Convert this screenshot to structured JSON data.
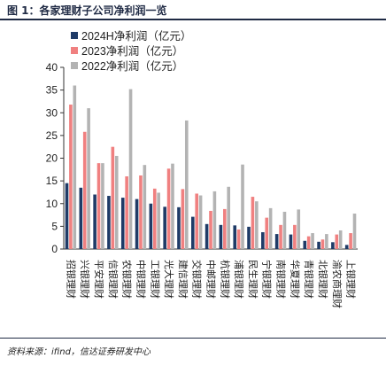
{
  "figure": {
    "title": "图 1：各家理财子公司净利润一览",
    "source": "资料来源：ifind，信达证券研发中心"
  },
  "chart_data": {
    "type": "bar",
    "categories": [
      "招银理财",
      "兴银理财",
      "平安理财",
      "信银理财",
      "农银理财",
      "中银理财",
      "工银理财",
      "光大理财",
      "建信理财",
      "交银理财",
      "中邮理财",
      "杭银理财",
      "浦银理财",
      "民生理财",
      "宁银理财",
      "南银理财",
      "华夏理财",
      "青银理财",
      "北银理财",
      "渝农商理财",
      "上银理财"
    ],
    "series": [
      {
        "name": "2024H净利润（亿元）",
        "color": "#1f3b67",
        "values": [
          14.5,
          13.5,
          12.0,
          11.7,
          11.3,
          11.0,
          10.0,
          9.3,
          9.2,
          7.1,
          5.5,
          5.3,
          5.2,
          4.9,
          3.7,
          3.3,
          3.2,
          1.8,
          1.6,
          1.5,
          0.9
        ]
      },
      {
        "name": "2023净利润（亿元）",
        "color": "#f08080",
        "values": [
          31.8,
          25.8,
          18.9,
          22.5,
          16.0,
          16.2,
          13.3,
          17.7,
          13.2,
          12.2,
          8.4,
          8.8,
          4.3,
          11.5,
          6.9,
          5.3,
          5.3,
          2.8,
          2.1,
          3.2,
          3.5
        ]
      },
      {
        "name": "2022净利润（亿元）",
        "color": "#b3b3b3",
        "values": [
          36.0,
          31.0,
          18.9,
          20.5,
          35.2,
          18.5,
          12.4,
          18.8,
          28.3,
          11.8,
          12.7,
          13.7,
          18.6,
          10.5,
          9.0,
          8.2,
          8.7,
          3.5,
          3.3,
          4.1,
          7.8
        ]
      }
    ],
    "yticks": [
      0,
      5,
      10,
      15,
      20,
      25,
      30,
      35,
      40
    ],
    "ylim": [
      0,
      40
    ],
    "legend_position": "top-left",
    "grid": false
  }
}
